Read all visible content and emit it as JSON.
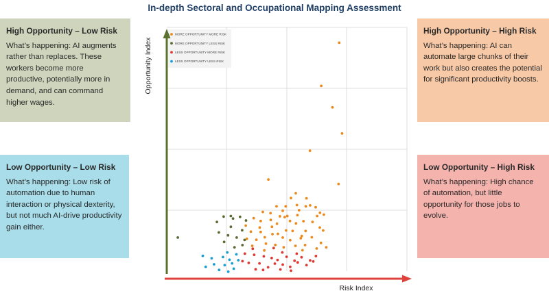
{
  "chart_data": {
    "type": "scatter",
    "title": "In-depth Sectoral and Occupational Mapping Assessment",
    "xlabel": "Risk Index",
    "ylabel": "Opportunity Index",
    "xlim": [
      0,
      10
    ],
    "ylim": [
      0,
      10
    ],
    "grid": true,
    "legend_position": "top-left",
    "series": [
      {
        "name": "MORE OPPORTUNITY MORE RISK",
        "color": "#ea8a1c",
        "points": [
          [
            7.18,
            9.37
          ],
          [
            6.43,
            7.6
          ],
          [
            6.9,
            6.72
          ],
          [
            7.3,
            5.65
          ],
          [
            5.96,
            4.94
          ],
          [
            7.15,
            3.58
          ],
          [
            4.23,
            3.76
          ],
          [
            5.37,
            3.2
          ],
          [
            5.17,
            3.0
          ],
          [
            5.82,
            2.99
          ],
          [
            4.0,
            2.43
          ],
          [
            4.57,
            2.66
          ],
          [
            4.95,
            2.66
          ],
          [
            5.42,
            2.71
          ],
          [
            5.79,
            2.66
          ],
          [
            5.97,
            2.7
          ],
          [
            6.38,
            2.4
          ],
          [
            6.2,
            2.62
          ],
          [
            3.62,
            2.17
          ],
          [
            3.91,
            2.06
          ],
          [
            4.33,
            2.1
          ],
          [
            4.71,
            2.25
          ],
          [
            5.02,
            2.26
          ],
          [
            5.44,
            2.3
          ],
          [
            5.69,
            2.05
          ],
          [
            6.07,
            2.02
          ],
          [
            6.26,
            2.26
          ],
          [
            6.54,
            2.32
          ],
          [
            3.5,
            1.62
          ],
          [
            3.91,
            1.61
          ],
          [
            4.38,
            1.82
          ],
          [
            4.63,
            1.53
          ],
          [
            4.97,
            1.67
          ],
          [
            5.24,
            1.65
          ],
          [
            5.38,
            1.96
          ],
          [
            5.78,
            1.65
          ],
          [
            6.04,
            1.39
          ],
          [
            6.51,
            1.67
          ],
          [
            3.33,
            1.33
          ],
          [
            3.73,
            1.29
          ],
          [
            4.08,
            1.39
          ],
          [
            4.52,
            1.08
          ],
          [
            4.83,
            1.38
          ],
          [
            5.14,
            1.27
          ],
          [
            5.58,
            1.35
          ],
          [
            5.76,
            1.07
          ],
          [
            6.42,
            1.16
          ],
          [
            3.56,
            1.04
          ],
          [
            4.06,
            0.85
          ],
          [
            4.87,
            0.98
          ],
          [
            5.36,
            1.04
          ],
          [
            5.65,
            0.86
          ],
          [
            6.24,
            0.93
          ],
          [
            6.64,
            0.98
          ],
          [
            3.87,
            1.79
          ],
          [
            4.32,
            2.38
          ],
          [
            4.83,
            2.48
          ],
          [
            5.51,
            2.5
          ],
          [
            3.29,
            1.87
          ],
          [
            4.13,
            1.13
          ],
          [
            4.59,
            1.95
          ],
          [
            5.62,
            1.44
          ],
          [
            6.37,
            1.79
          ],
          [
            5.13,
            2.06
          ],
          [
            4.91,
            2.22
          ],
          [
            4.4,
            1.52
          ]
        ]
      },
      {
        "name": "MORE OPPORTUNITY LESS RISK",
        "color": "#596b33",
        "points": [
          [
            0.46,
            1.38
          ],
          [
            2.09,
            2.02
          ],
          [
            2.37,
            2.24
          ],
          [
            2.67,
            1.82
          ],
          [
            2.76,
            2.16
          ],
          [
            3.05,
            2.23
          ],
          [
            3.3,
            2.08
          ],
          [
            2.17,
            1.59
          ],
          [
            2.55,
            1.47
          ],
          [
            2.91,
            1.38
          ],
          [
            3.14,
            1.68
          ],
          [
            3.24,
            1.28
          ],
          [
            2.39,
            1.2
          ],
          [
            2.82,
            0.98
          ],
          [
            3.15,
            1.07
          ],
          [
            2.67,
            2.26
          ]
        ]
      },
      {
        "name": "LESS OPPORTUNITY MORE RISK",
        "color": "#de3832",
        "points": [
          [
            3.64,
            0.67
          ],
          [
            4.04,
            0.61
          ],
          [
            4.37,
            0.54
          ],
          [
            4.61,
            0.46
          ],
          [
            4.99,
            0.59
          ],
          [
            5.32,
            0.43
          ],
          [
            5.61,
            0.57
          ],
          [
            5.97,
            0.44
          ],
          [
            3.41,
            0.34
          ],
          [
            3.86,
            0.32
          ],
          [
            4.22,
            0.16
          ],
          [
            4.5,
            0.31
          ],
          [
            4.83,
            0.27
          ],
          [
            5.14,
            0.18
          ],
          [
            5.45,
            0.36
          ],
          [
            5.82,
            0.25
          ],
          [
            3.7,
            0.08
          ],
          [
            4.01,
            0.05
          ],
          [
            4.73,
            0.07
          ],
          [
            5.17,
            0.02
          ],
          [
            3.58,
            0.92
          ],
          [
            4.45,
            0.95
          ],
          [
            5.41,
            0.72
          ],
          [
            3.15,
            0.41
          ],
          [
            6.21,
            0.62
          ],
          [
            4.81,
            0.77
          ],
          [
            3.25,
            0.72
          ],
          [
            6.1,
            0.4
          ]
        ]
      },
      {
        "name": "LESS OPPORTUNITY LESS RISK",
        "color": "#199fcf",
        "points": [
          [
            1.5,
            0.63
          ],
          [
            1.87,
            0.53
          ],
          [
            2.34,
            0.58
          ],
          [
            2.61,
            0.47
          ],
          [
            2.98,
            0.45
          ],
          [
            2.41,
            0.25
          ],
          [
            2.72,
            0.32
          ],
          [
            1.97,
            0.28
          ],
          [
            2.79,
            0.1
          ],
          [
            2.18,
            0.05
          ],
          [
            2.52,
            0.77
          ],
          [
            2.9,
            0.69
          ],
          [
            1.62,
            0.18
          ],
          [
            2.56,
            -0.02
          ]
        ]
      }
    ]
  },
  "quadrants": {
    "high_opp_low_risk": {
      "title": "High Opportunity – Low Risk",
      "body": "What’s happening: AI augments rather than replaces. These workers become more productive, potentially more in demand, and can command higher wages."
    },
    "high_opp_high_risk": {
      "title": "High Opportunity – High Risk",
      "body": "What’s happening: AI can automate large chunks of their work but also creates the potential for significant productivity boosts."
    },
    "low_opp_low_risk": {
      "title": "Low Opportunity – Low Risk",
      "body": "What’s happening: Low risk of automation due to human interaction or physical dexterity, but not much AI-drive productivity gain either."
    },
    "low_opp_high_risk": {
      "title": "Low Opportunity – High Risk",
      "body": "What’s happening: High chance of automation, but little opportunity for those jobs to evolve."
    }
  },
  "colors": {
    "title": "#1f3f66",
    "y_arrow": "#5c7330",
    "x_arrow": "#e0433b",
    "box_high_opp_low_risk": "#cfd5bd",
    "box_low_opp_low_risk": "#a8dde9",
    "box_high_opp_high_risk": "#f8c9a6",
    "box_low_opp_high_risk": "#f5b3ad"
  }
}
